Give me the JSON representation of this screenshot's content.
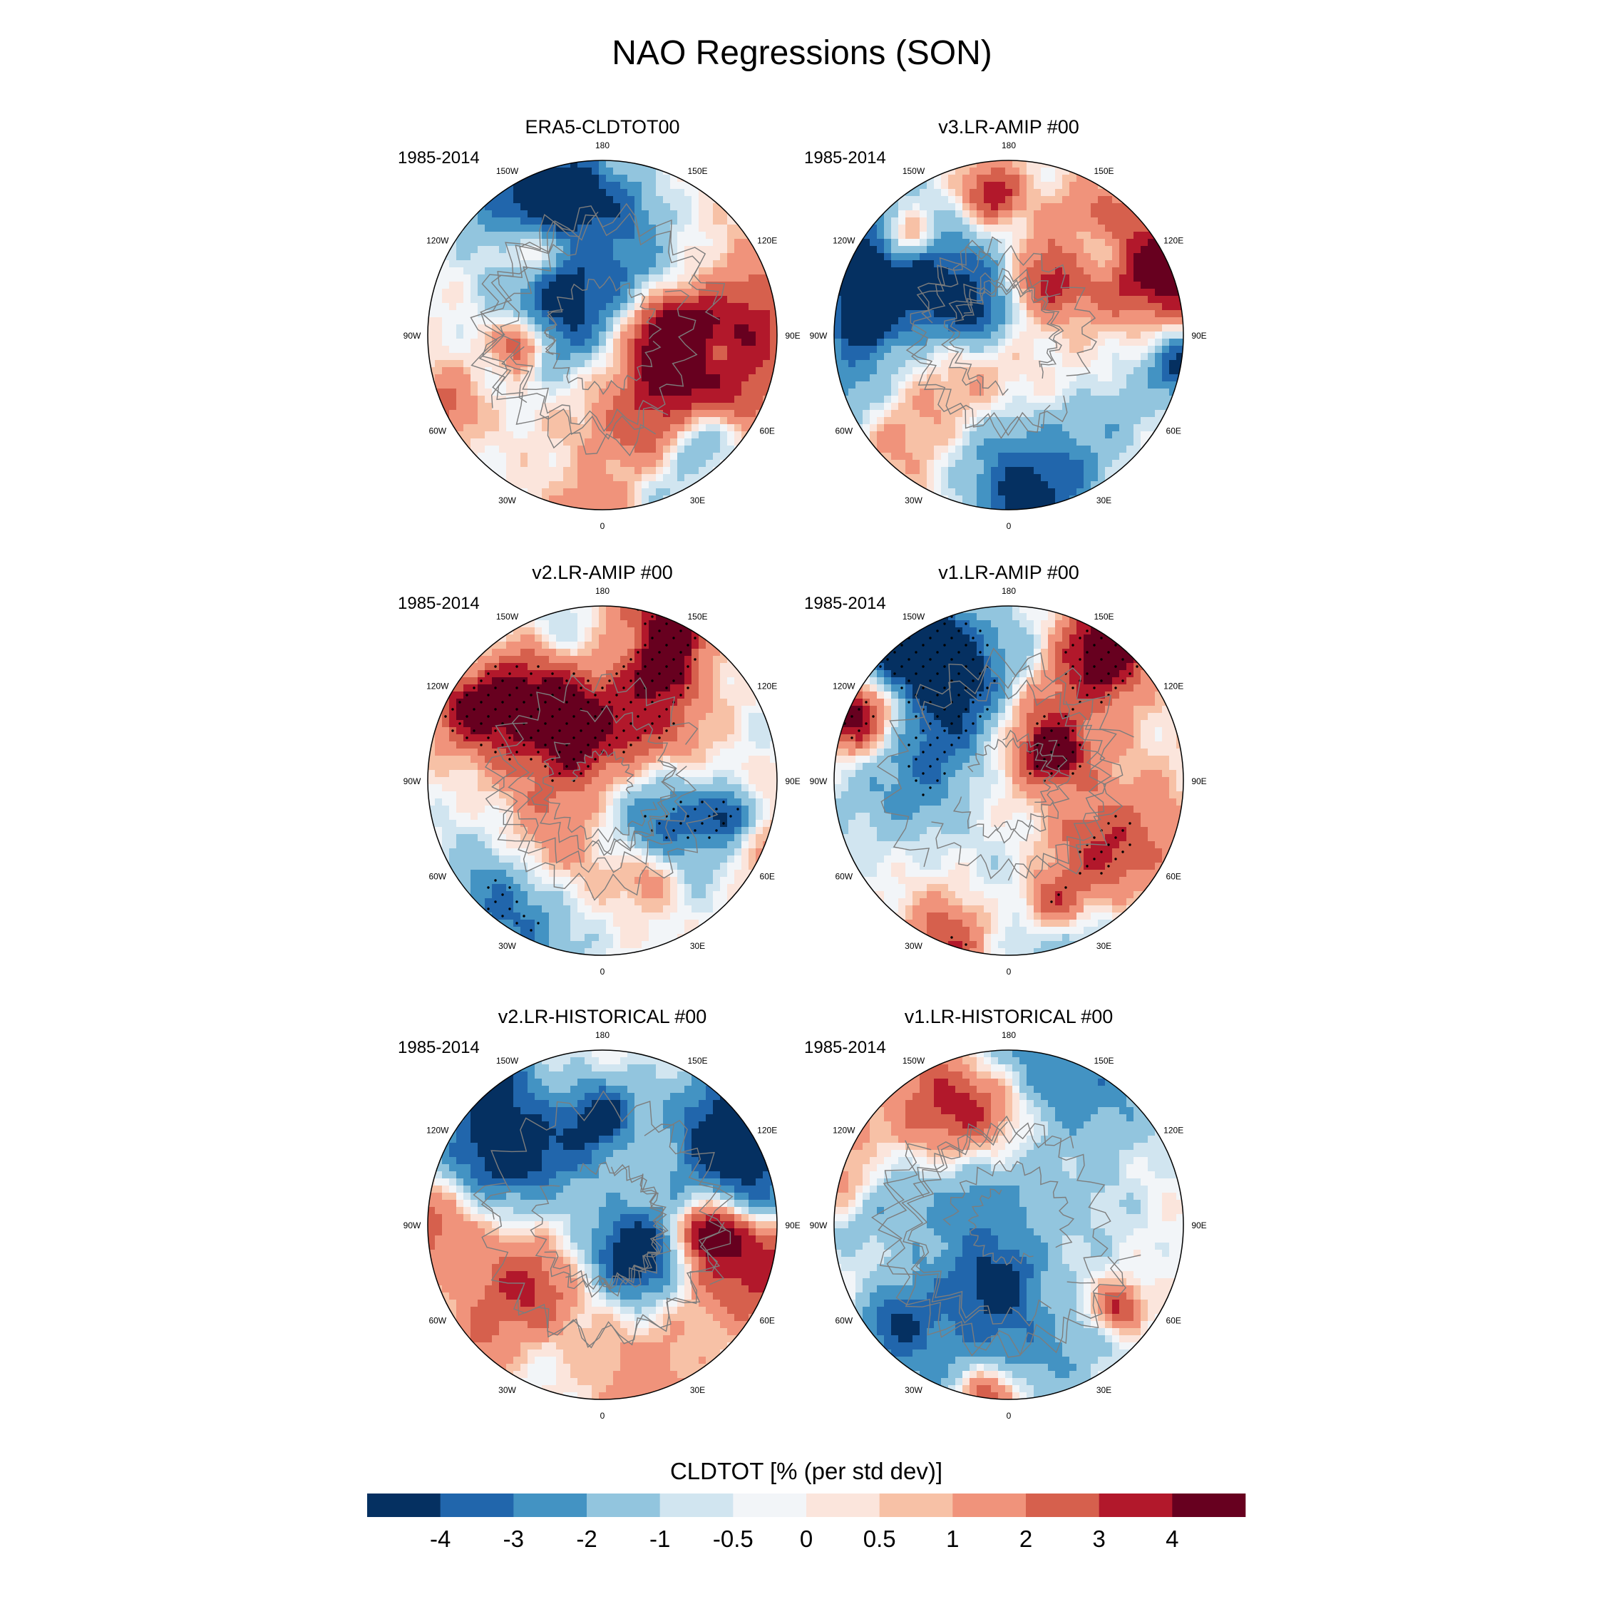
{
  "title": "NAO Regressions (SON)",
  "chart_data": {
    "type": "heatmap",
    "projection": "north polar stereographic",
    "panels": [
      {
        "title": "ERA5-CLDTOT00",
        "period": "1985-2014"
      },
      {
        "title": "v3.LR-AMIP  #00",
        "period": "1985-2014"
      },
      {
        "title": "v2.LR-AMIP  #00",
        "period": "1985-2014"
      },
      {
        "title": "v1.LR-AMIP  #00",
        "period": "1985-2014"
      },
      {
        "title": "v2.LR-HISTORICAL  #00",
        "period": "1985-2014"
      },
      {
        "title": "v1.LR-HISTORICAL  #00",
        "period": "1985-2014"
      }
    ],
    "longitude_labels": [
      "0",
      "30E",
      "60E",
      "90E",
      "120E",
      "150E",
      "180",
      "150W",
      "120W",
      "90W",
      "60W",
      "30W"
    ],
    "colorbar": {
      "label": "CLDTOT [% (per std dev)]",
      "levels": [
        -4,
        -3,
        -2,
        -1,
        -0.5,
        0,
        0.5,
        1,
        2,
        3,
        4
      ],
      "tick_labels": [
        "-4",
        "-3",
        "-2",
        "-1",
        "-0.5",
        "0",
        "0.5",
        "1",
        "2",
        "3",
        "4"
      ],
      "colors": [
        "#053061",
        "#2166ac",
        "#4393c3",
        "#92c5de",
        "#d1e5f0",
        "#f2f5f8",
        "#fbe5dc",
        "#f7c1a6",
        "#f0937b",
        "#d6604d",
        "#b2182b",
        "#67001f"
      ]
    }
  }
}
